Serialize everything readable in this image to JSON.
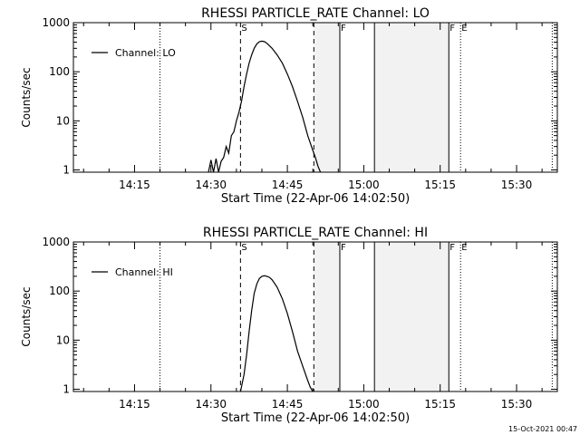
{
  "footer_timestamp": "15-Oct-2021 00:47",
  "chart_data": [
    {
      "type": "line",
      "title": "RHESSI PARTICLE_RATE Channel: LO",
      "xlabel": "Start Time (22-Apr-06 14:02:50)",
      "ylabel": "Counts/sec",
      "yscale": "log",
      "ylim": [
        0.9,
        1000
      ],
      "xlim_minutes_since_1400": [
        3,
        98
      ],
      "x_ticks": [
        "14:15",
        "14:30",
        "14:45",
        "15:00",
        "15:15",
        "15:30"
      ],
      "y_ticks": [
        "1",
        "10",
        "100",
        "1000"
      ],
      "legend": "top-left",
      "series": [
        {
          "name": "Channel: LO",
          "x_time": [
            "14:29.5",
            "14:30.0",
            "14:30.5",
            "14:31.0",
            "14:31.5",
            "14:32.0",
            "14:32.5",
            "14:33.0",
            "14:33.5",
            "14:34.0",
            "14:34.5",
            "14:35.0",
            "14:35.5",
            "14:36.0",
            "14:36.5",
            "14:37.0",
            "14:37.5",
            "14:38.0",
            "14:38.5",
            "14:39.0",
            "14:39.5",
            "14:40.0",
            "14:40.5",
            "14:41.0",
            "14:42.0",
            "14:43.0",
            "14:44.0",
            "14:45.0",
            "14:46.0",
            "14:47.0",
            "14:48.0",
            "14:49.0",
            "14:50.0",
            "14:50.5",
            "14:51.0",
            "14:51.5"
          ],
          "y": [
            0.9,
            1.6,
            0.9,
            1.7,
            0.9,
            1.5,
            1.8,
            3,
            2.2,
            5,
            6,
            10,
            15,
            25,
            50,
            90,
            150,
            220,
            300,
            370,
            410,
            420,
            410,
            380,
            300,
            220,
            150,
            90,
            50,
            25,
            12,
            5,
            2.5,
            1.8,
            1.2,
            0.9
          ]
        }
      ],
      "markers": [
        {
          "label": "S",
          "time": "14:35.8",
          "style": "dashed"
        },
        {
          "label": "",
          "time": "14:50.2",
          "style": "dashed"
        },
        {
          "label": "F",
          "time": "14:55.3",
          "style": "solid"
        },
        {
          "label": "",
          "time": "15:02.1",
          "style": "solid"
        },
        {
          "label": "F",
          "time": "15:16.7",
          "style": "solid"
        },
        {
          "label": "E",
          "time": "15:19.0",
          "style": "dotted"
        },
        {
          "label": "",
          "time": "14:20.0",
          "style": "dotted"
        },
        {
          "label": "",
          "time": "15:37.0",
          "style": "dotted"
        }
      ],
      "shaded_ranges": [
        [
          "14:50.2",
          "14:55.3"
        ],
        [
          "15:02.1",
          "15:16.7"
        ]
      ]
    },
    {
      "type": "line",
      "title": "RHESSI PARTICLE_RATE Channel: HI",
      "xlabel": "Start Time (22-Apr-06 14:02:50)",
      "ylabel": "Counts/sec",
      "yscale": "log",
      "ylim": [
        0.9,
        1000
      ],
      "xlim_minutes_since_1400": [
        3,
        98
      ],
      "x_ticks": [
        "14:15",
        "14:30",
        "14:45",
        "15:00",
        "15:15",
        "15:30"
      ],
      "y_ticks": [
        "1",
        "10",
        "100",
        "1000"
      ],
      "legend": "top-left",
      "series": [
        {
          "name": "Channel: HI",
          "x_time": [
            "14:35.8",
            "14:36.5",
            "14:37.0",
            "14:37.5",
            "14:38.0",
            "14:38.5",
            "14:39.0",
            "14:39.5",
            "14:40.0",
            "14:40.5",
            "14:41.0",
            "14:41.5",
            "14:42.0",
            "14:43.0",
            "14:44.0",
            "14:45.0",
            "14:46.0",
            "14:47.0",
            "14:48.0",
            "14:49.0",
            "14:49.5",
            "14:50.0"
          ],
          "y": [
            0.9,
            2,
            5,
            15,
            40,
            90,
            140,
            180,
            200,
            205,
            200,
            190,
            170,
            120,
            70,
            35,
            15,
            6,
            3,
            1.5,
            1.1,
            0.9
          ]
        }
      ],
      "markers": [
        {
          "label": "S",
          "time": "14:35.8",
          "style": "dashed"
        },
        {
          "label": "",
          "time": "14:50.2",
          "style": "dashed"
        },
        {
          "label": "F",
          "time": "14:55.3",
          "style": "solid"
        },
        {
          "label": "",
          "time": "15:02.1",
          "style": "solid"
        },
        {
          "label": "F",
          "time": "15:16.7",
          "style": "solid"
        },
        {
          "label": "E",
          "time": "15:19.0",
          "style": "dotted"
        },
        {
          "label": "",
          "time": "14:20.0",
          "style": "dotted"
        },
        {
          "label": "",
          "time": "15:37.0",
          "style": "dotted"
        }
      ],
      "shaded_ranges": [
        [
          "14:50.2",
          "14:55.3"
        ],
        [
          "15:02.1",
          "15:16.7"
        ]
      ]
    }
  ]
}
